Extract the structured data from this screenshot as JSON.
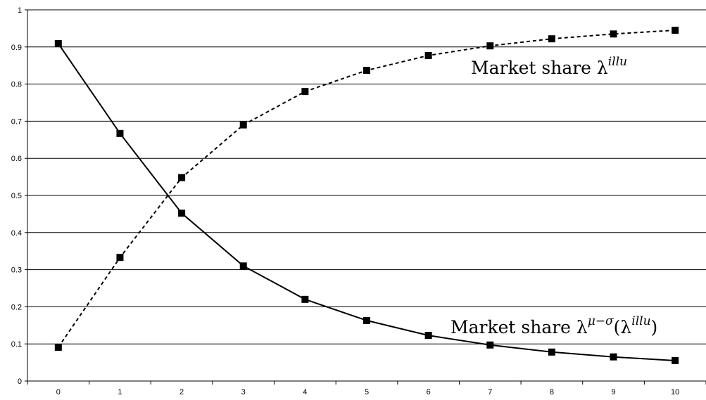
{
  "chart_data": {
    "type": "line",
    "x": [
      0,
      1,
      2,
      3,
      4,
      5,
      6,
      7,
      8,
      9,
      10
    ],
    "xlim": [
      -0.5,
      10.5
    ],
    "ylim": [
      0,
      1
    ],
    "y_ticks": [
      "0",
      "0.1",
      "0.2",
      "0.3",
      "0.4",
      "0.5",
      "0.6",
      "0.7",
      "0.8",
      "0.9",
      "1"
    ],
    "x_ticks": [
      "0",
      "1",
      "2",
      "3",
      "4",
      "5",
      "6",
      "7",
      "8",
      "9",
      "10"
    ],
    "grid": "horizontal",
    "legend": "none",
    "marker": "square",
    "series": [
      {
        "style": "solid",
        "values": [
          0.909,
          0.667,
          0.452,
          0.31,
          0.22,
          0.163,
          0.123,
          0.097,
          0.078,
          0.065,
          0.055
        ]
      },
      {
        "style": "dashed",
        "values": [
          0.091,
          0.333,
          0.548,
          0.69,
          0.78,
          0.837,
          0.877,
          0.903,
          0.922,
          0.935,
          0.945
        ]
      }
    ],
    "annotations": [
      {
        "prefix": "Market share λ",
        "sup": "illu",
        "suffix": ""
      },
      {
        "prefix": "Market share λ",
        "sup": "μ−σ",
        "suffix": "(λ",
        "sup2": "illu",
        "suffix2": ")"
      }
    ]
  }
}
